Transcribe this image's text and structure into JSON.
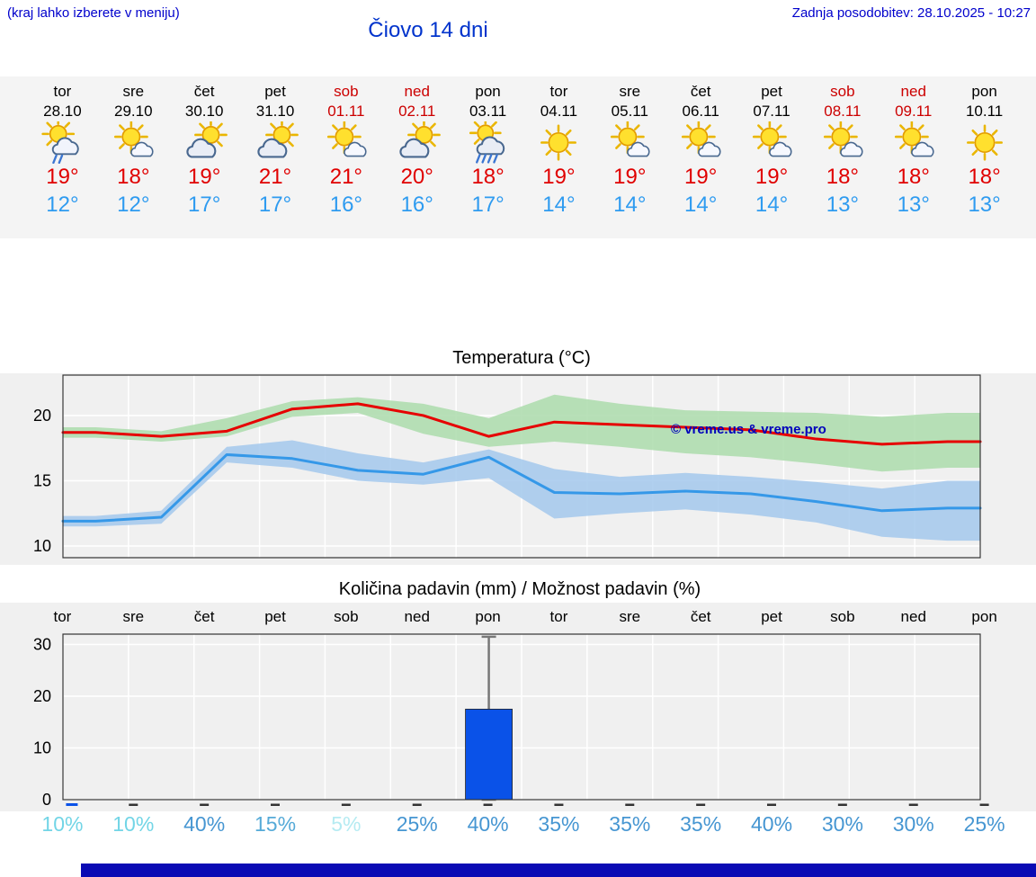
{
  "header": {
    "menu_hint": "(kraj lahko izberete v meniju)",
    "last_update": "Zadnja posodobitev: 28.10.2025 - 10:27",
    "title": "Čiovo 14 dni"
  },
  "colors": {
    "link_blue": "#0000cc",
    "title_blue": "#0033cc",
    "weekend_red": "#cc0000",
    "tmax_red": "#e00000",
    "tmin_blue": "#2e9bf0",
    "strip_bg": "#f4f4f4",
    "chart_bg": "#f0f0f0",
    "footer_blue": "#0a0ab4"
  },
  "forecast": {
    "days": [
      {
        "name": "tor",
        "date": "28.10",
        "weekend": false,
        "icon": "sun-cloud-rain-icon",
        "tmax": "19°",
        "tmin": "12°"
      },
      {
        "name": "sre",
        "date": "29.10",
        "weekend": false,
        "icon": "sun-cloud-icon",
        "tmax": "18°",
        "tmin": "12°"
      },
      {
        "name": "čet",
        "date": "30.10",
        "weekend": false,
        "icon": "cloud-sun-icon",
        "tmax": "19°",
        "tmin": "17°"
      },
      {
        "name": "pet",
        "date": "31.10",
        "weekend": false,
        "icon": "cloud-sun-icon",
        "tmax": "21°",
        "tmin": "17°"
      },
      {
        "name": "sob",
        "date": "01.11",
        "weekend": true,
        "icon": "sun-cloud-icon",
        "tmax": "21°",
        "tmin": "16°"
      },
      {
        "name": "ned",
        "date": "02.11",
        "weekend": true,
        "icon": "cloud-sun-icon",
        "tmax": "20°",
        "tmin": "16°"
      },
      {
        "name": "pon",
        "date": "03.11",
        "weekend": false,
        "icon": "sun-cloud-heavy-rain-icon",
        "tmax": "18°",
        "tmin": "17°"
      },
      {
        "name": "tor",
        "date": "04.11",
        "weekend": false,
        "icon": "sun-icon",
        "tmax": "19°",
        "tmin": "14°"
      },
      {
        "name": "sre",
        "date": "05.11",
        "weekend": false,
        "icon": "sun-cloud-icon",
        "tmax": "19°",
        "tmin": "14°"
      },
      {
        "name": "čet",
        "date": "06.11",
        "weekend": false,
        "icon": "sun-cloud-icon",
        "tmax": "19°",
        "tmin": "14°"
      },
      {
        "name": "pet",
        "date": "07.11",
        "weekend": false,
        "icon": "sun-cloud-icon",
        "tmax": "19°",
        "tmin": "14°"
      },
      {
        "name": "sob",
        "date": "08.11",
        "weekend": true,
        "icon": "sun-cloud-icon",
        "tmax": "18°",
        "tmin": "13°"
      },
      {
        "name": "ned",
        "date": "09.11",
        "weekend": true,
        "icon": "sun-cloud-icon",
        "tmax": "18°",
        "tmin": "13°"
      },
      {
        "name": "pon",
        "date": "10.11",
        "weekend": false,
        "icon": "sun-icon",
        "tmax": "18°",
        "tmin": "13°"
      }
    ]
  },
  "chart_data": [
    {
      "type": "line",
      "title": "Temperatura (°C)",
      "categories": [
        "tor 28.10",
        "sre 29.10",
        "čet 30.10",
        "pet 31.10",
        "sob 01.11",
        "ned 02.11",
        "pon 03.11",
        "tor 04.11",
        "sre 05.11",
        "čet 06.11",
        "pet 07.11",
        "sob 08.11",
        "ned 09.11",
        "pon 10.11"
      ],
      "series": [
        {
          "name": "max",
          "color": "#e60000",
          "values": [
            18.7,
            18.4,
            18.8,
            20.5,
            20.9,
            20.0,
            18.4,
            19.5,
            19.3,
            19.1,
            18.9,
            18.2,
            17.8,
            18.0
          ]
        },
        {
          "name": "min",
          "color": "#3598e8",
          "values": [
            11.9,
            12.2,
            17.0,
            16.7,
            15.8,
            15.5,
            16.8,
            14.1,
            14.0,
            14.2,
            14.0,
            13.4,
            12.7,
            12.9
          ]
        }
      ],
      "bands": [
        {
          "series": "max",
          "color": "#abdcab",
          "high": [
            19.1,
            18.8,
            19.8,
            21.1,
            21.4,
            20.9,
            19.8,
            21.6,
            20.9,
            20.4,
            20.3,
            20.2,
            19.9,
            20.2
          ],
          "low": [
            18.3,
            18.0,
            18.4,
            19.9,
            20.2,
            18.6,
            17.6,
            18.0,
            17.6,
            17.1,
            16.8,
            16.3,
            15.7,
            16.0
          ]
        },
        {
          "series": "min",
          "color": "#a3c8ec",
          "high": [
            12.3,
            12.7,
            17.6,
            18.1,
            17.1,
            16.4,
            17.4,
            15.9,
            15.3,
            15.6,
            15.3,
            14.9,
            14.4,
            15.0
          ],
          "low": [
            11.5,
            11.7,
            16.4,
            16.0,
            15.0,
            14.7,
            15.2,
            12.1,
            12.5,
            12.8,
            12.4,
            11.8,
            10.7,
            10.4
          ]
        }
      ],
      "ylim": [
        9.1,
        23.1
      ],
      "yticks": [
        10,
        15,
        20
      ],
      "grid": true,
      "legend": "none",
      "watermark": "© vreme.us & vreme.pro",
      "watermark_color": "#0000bb"
    },
    {
      "type": "bar",
      "title": "Količina padavin (mm) / Možnost padavin (%)",
      "categories": [
        "tor",
        "sre",
        "čet",
        "pet",
        "sob",
        "ned",
        "pon",
        "tor",
        "sre",
        "čet",
        "pet",
        "sob",
        "ned",
        "pon"
      ],
      "values_mm": [
        0.2,
        0,
        0,
        0,
        0,
        0,
        17.5,
        0,
        0,
        0,
        0,
        0,
        0,
        0
      ],
      "bar_color": "#0a52e8",
      "whisker": {
        "day_index": 6,
        "from_mm": 0,
        "to_mm": 31.5,
        "color": "#777777"
      },
      "ylim": [
        0,
        32
      ],
      "yticks": [
        0,
        10,
        20,
        30
      ],
      "grid": true,
      "probabilities": [
        {
          "label": "10%",
          "color": "#72d5e6"
        },
        {
          "label": "10%",
          "color": "#72d5e6"
        },
        {
          "label": "40%",
          "color": "#4696d2"
        },
        {
          "label": "15%",
          "color": "#55aad8"
        },
        {
          "label": "5%",
          "color": "#b5ebf2"
        },
        {
          "label": "25%",
          "color": "#4696d2"
        },
        {
          "label": "40%",
          "color": "#4696d2"
        },
        {
          "label": "35%",
          "color": "#4696d2"
        },
        {
          "label": "35%",
          "color": "#4696d2"
        },
        {
          "label": "35%",
          "color": "#4696d2"
        },
        {
          "label": "40%",
          "color": "#4696d2"
        },
        {
          "label": "30%",
          "color": "#4696d2"
        },
        {
          "label": "30%",
          "color": "#4696d2"
        },
        {
          "label": "25%",
          "color": "#4696d2"
        }
      ]
    }
  ]
}
